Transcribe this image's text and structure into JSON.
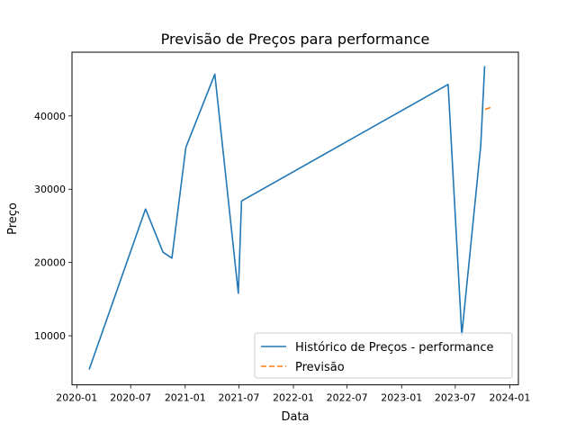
{
  "chart_data": {
    "type": "line",
    "title": "Previsão de Preços para performance",
    "xlabel": "Data",
    "ylabel": "Preço",
    "x_ticks": [
      "2020-01",
      "2020-07",
      "2021-01",
      "2021-07",
      "2022-01",
      "2022-07",
      "2023-01",
      "2023-07",
      "2024-01"
    ],
    "y_ticks": [
      10000,
      20000,
      30000,
      40000
    ],
    "y_tick_labels": [
      "10000",
      "20000",
      "30000",
      "40000"
    ],
    "xlim": [
      "2019-12-16",
      "2024-01-30"
    ],
    "ylim": [
      3300,
      48700
    ],
    "grid": false,
    "legend_position": "lower-right",
    "series": [
      {
        "name": "Histórico de Preços - performance",
        "color": "#1f77b4",
        "style": "solid",
        "x": [
          "2020-02-12",
          "2020-08-20",
          "2020-10-18",
          "2020-11-17",
          "2021-01-03",
          "2021-04-11",
          "2021-06-29",
          "2021-07-10",
          "2023-06-07",
          "2023-07-23",
          "2023-09-25",
          "2023-10-08"
        ],
        "y": [
          5400,
          27300,
          21400,
          20600,
          35700,
          45700,
          15800,
          28400,
          44300,
          10100,
          36000,
          46800
        ]
      },
      {
        "name": "Previsão",
        "color": "#ff7f0e",
        "style": "dashed",
        "x": [
          "2023-10-10",
          "2023-10-31"
        ],
        "y": [
          40900,
          41200
        ]
      }
    ]
  }
}
